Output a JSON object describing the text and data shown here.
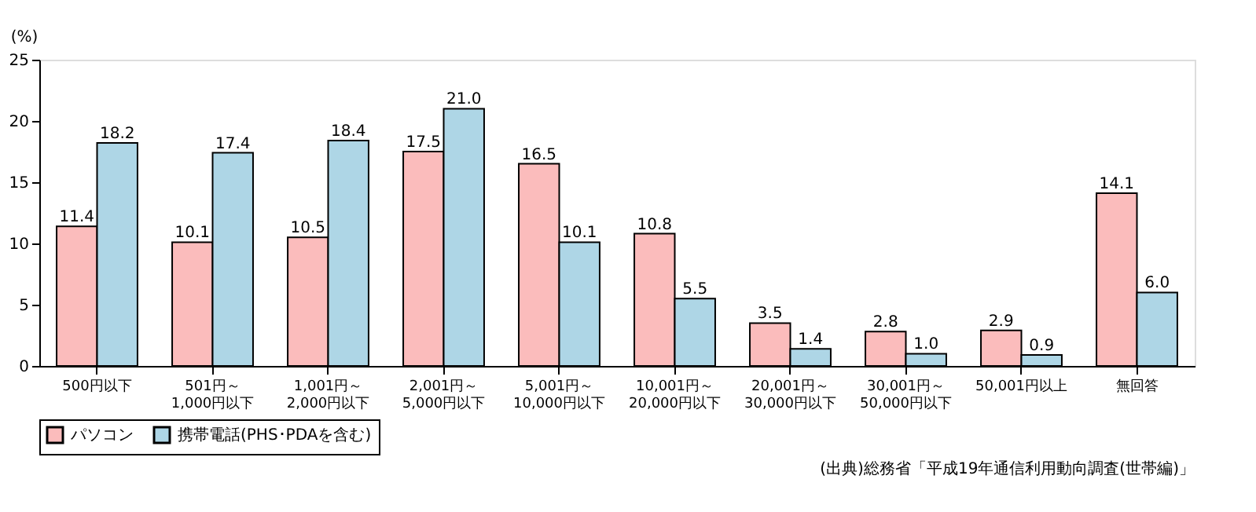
{
  "chart_data": {
    "type": "bar",
    "ylabel": "(%)",
    "categories": [
      "500円以下",
      "501円～\n1,000円以下",
      "1,001円～\n2,000円以下",
      "2,001円～\n5,000円以下",
      "5,001円～\n10,000円以下",
      "10,001円～\n20,000円以下",
      "20,001円～\n30,000円以下",
      "30,001円～\n50,000円以下",
      "50,001円以上",
      "無回答"
    ],
    "series": [
      {
        "name": "パソコン",
        "color": "#fbbcbc",
        "values": [
          11.4,
          10.1,
          10.5,
          17.5,
          16.5,
          10.8,
          3.5,
          2.8,
          2.9,
          14.1
        ],
        "value_labels": [
          "11.4",
          "10.1",
          "10.5",
          "17.5",
          "16.5",
          "10.8",
          "3.5",
          "2.8",
          "2.9",
          "14.1"
        ]
      },
      {
        "name": "携帯電話(PHS･PDAを含む)",
        "color": "#aed6e6",
        "values": [
          18.2,
          17.4,
          18.4,
          21.0,
          10.1,
          5.5,
          1.4,
          1.0,
          0.9,
          6.0
        ],
        "value_labels": [
          "18.2",
          "17.4",
          "18.4",
          "21.0",
          "10.1",
          "5.5",
          "1.4",
          "1.0",
          "0.9",
          "6.0"
        ]
      }
    ],
    "ylim": [
      0,
      25
    ],
    "yticks": [
      0,
      5,
      10,
      15,
      20,
      25
    ],
    "grid": false,
    "legend": "bottom",
    "annotations": [
      "(出典)総務省「平成19年通信利用動向調査(世帯編)」"
    ]
  }
}
